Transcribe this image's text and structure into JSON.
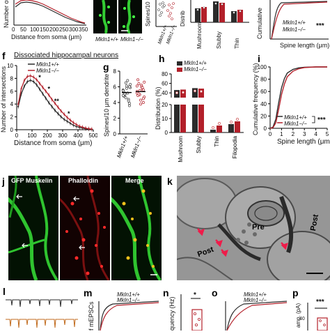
{
  "labels": {
    "f": "f",
    "g": "g",
    "h": "h",
    "i": "i",
    "j": "j",
    "k": "k",
    "l": "l",
    "m": "m",
    "n": "n",
    "o": "o",
    "p": "p"
  },
  "top_row": {
    "sholl_ylabel": "Number of",
    "sholl_xlabel": "Distance from soma (μm)",
    "sholl_xticks": [
      "0",
      "50",
      "100",
      "150",
      "200",
      "250",
      "300",
      "350"
    ],
    "img_label_wt": "Mkln1+/+",
    "img_label_ko": "Mkln1−/−",
    "spines_ylabel": "Spines/10",
    "dist_ylabel": "Distrib",
    "dist_cats": [
      "Mushroom",
      "Stubby",
      "Thin"
    ],
    "cum_ylabel": "Cumulative",
    "cum_xlabel": "Spine length (μm)",
    "cum_legend_wt": "Mkln1+/+",
    "cum_legend_ko": "Mkln1−/−",
    "cum_sig": "***"
  },
  "panel_f": {
    "title": "Dissociated hippocampal neurons",
    "legend_wt": "Mkln1+/+",
    "legend_ko": "Mkln1−/−",
    "ylabel": "Number of intersections",
    "xlabel": "Distance from soma (μm)",
    "xticks": [
      "0",
      "100",
      "200",
      "300",
      "400",
      "500"
    ],
    "yticks": [
      "0",
      "2",
      "4",
      "6",
      "8",
      "10"
    ],
    "stars": [
      "*",
      "*",
      "**",
      "*"
    ]
  },
  "panel_g": {
    "ylabel": "Spines/10 μm dendrite",
    "yticks": [
      "0",
      "2",
      "4",
      "6",
      "8"
    ],
    "groups": [
      "Mkln1+/+",
      "Mkln1−/−"
    ]
  },
  "panel_h": {
    "legend_wt": "Mkln1+/+",
    "legend_ko": "Mkln1−/−",
    "ylabel": "Distribution (%)",
    "yticks_top": [
      "40",
      "60",
      "80"
    ],
    "yticks_bottom": [
      "0",
      "10",
      "20"
    ],
    "cats": [
      "Mushroom",
      "Stubby",
      "Thin",
      "Filopodia"
    ]
  },
  "panel_i": {
    "ylabel": "Cumulative frequency (%)",
    "xlabel": "Spine length (μm)",
    "yticks": [
      "0",
      "20",
      "40",
      "60",
      "80",
      "100"
    ],
    "xticks": [
      "0",
      "1",
      "2",
      "3",
      "4",
      "5"
    ],
    "legend_wt": "Mkln1+/+",
    "legend_ko": "Mkln1−/−",
    "sig": "***"
  },
  "panel_j": {
    "titles": [
      "GFP Muskelin",
      "Phalloidin",
      "Merge"
    ]
  },
  "panel_k": {
    "labels": [
      "Pre",
      "Post",
      "Post"
    ]
  },
  "bottom_row": {
    "m_ylabel": "f mEPSCs",
    "m_legend_wt": "Mkln1+/+",
    "m_legend_ko": "Mkln1−/−",
    "n_ylabel": "quency (Hz)",
    "n_sig": "*",
    "o_legend_wt": "Mkln1+/+",
    "o_legend_ko": "Mkln1−/−",
    "p_ylabel": "amp. (pA)",
    "p_sig": "***",
    "p_ytick": "40"
  },
  "colors": {
    "wt": "#2b2b2b",
    "ko": "#b3202a",
    "gfp": "#33cc33",
    "phalloidin": "#ee2222",
    "merge_yellow": "#f2c21b"
  },
  "chart_data": [
    {
      "type": "line",
      "panel": "f",
      "xlabel": "Distance from soma (μm)",
      "ylabel": "Number of intersections",
      "xlim": [
        0,
        500
      ],
      "ylim": [
        0,
        10
      ],
      "x": [
        10,
        30,
        50,
        70,
        90,
        110,
        130,
        150,
        170,
        190,
        210,
        230,
        250,
        270,
        290,
        310,
        330,
        350,
        370,
        390,
        410,
        430,
        450,
        470,
        490
      ],
      "series": [
        {
          "name": "Mkln1+/+",
          "values": [
            3.6,
            5.6,
            6.8,
            7.5,
            7.7,
            7.5,
            7.0,
            6.3,
            5.6,
            4.9,
            4.2,
            3.6,
            3.0,
            2.5,
            2.0,
            1.6,
            1.3,
            1.0,
            0.7,
            0.5,
            0.35,
            0.25,
            0.15,
            0.1,
            0.05
          ]
        },
        {
          "name": "Mkln1−/−",
          "values": [
            4.0,
            6.4,
            7.7,
            8.3,
            8.4,
            8.2,
            7.8,
            7.2,
            6.6,
            6.0,
            5.4,
            4.7,
            4.1,
            3.5,
            2.9,
            2.4,
            1.9,
            1.5,
            1.1,
            0.8,
            0.55,
            0.4,
            0.25,
            0.15,
            0.1
          ]
        }
      ]
    },
    {
      "type": "scatter",
      "panel": "g",
      "ylabel": "Spines/10 μm dendrite",
      "ylim": [
        0,
        8
      ],
      "categories": [
        "Mkln1+/+",
        "Mkln1−/−"
      ],
      "series": [
        {
          "name": "Mkln1+/+",
          "values": [
            5.6,
            3.6,
            5.2,
            6.5,
            4.8,
            5.9,
            4.4,
            6.1,
            5.0,
            5.5,
            3.9,
            6.8,
            4.6,
            5.3,
            6.3,
            4.2,
            5.8,
            5.1,
            4.9,
            6.0
          ]
        },
        {
          "name": "Mkln1−/−",
          "values": [
            5.4,
            4.0,
            6.2,
            5.0,
            6.9,
            4.7,
            5.7,
            3.8,
            6.4,
            5.2,
            4.5,
            6.0,
            5.5,
            4.9,
            6.6,
            5.9,
            4.3,
            5.1,
            6.1,
            5.6
          ]
        }
      ]
    },
    {
      "type": "bar",
      "panel": "h",
      "ylabel": "Distribution (%)",
      "categories": [
        "Mushroom",
        "Stubby",
        "Thin",
        "Filopodia"
      ],
      "series": [
        {
          "name": "Mkln1+/+",
          "values": [
            46,
            50,
            2,
            6
          ]
        },
        {
          "name": "Mkln1−/−",
          "values": [
            47,
            49,
            5,
            8
          ]
        }
      ]
    },
    {
      "type": "line",
      "panel": "i",
      "xlabel": "Spine length (μm)",
      "ylabel": "Cumulative frequency (%)",
      "xlim": [
        0,
        5
      ],
      "ylim": [
        0,
        100
      ],
      "x": [
        0,
        0.25,
        0.5,
        0.75,
        1,
        1.25,
        1.5,
        2,
        2.5,
        3,
        4,
        5
      ],
      "series": [
        {
          "name": "Mkln1+/+",
          "values": [
            0,
            2,
            15,
            42,
            66,
            81,
            90,
            96,
            98.5,
            99.5,
            100,
            100
          ]
        },
        {
          "name": "Mkln1−/−",
          "values": [
            0,
            1,
            9,
            31,
            55,
            72,
            84,
            93,
            97,
            99,
            100,
            100
          ]
        }
      ]
    }
  ]
}
